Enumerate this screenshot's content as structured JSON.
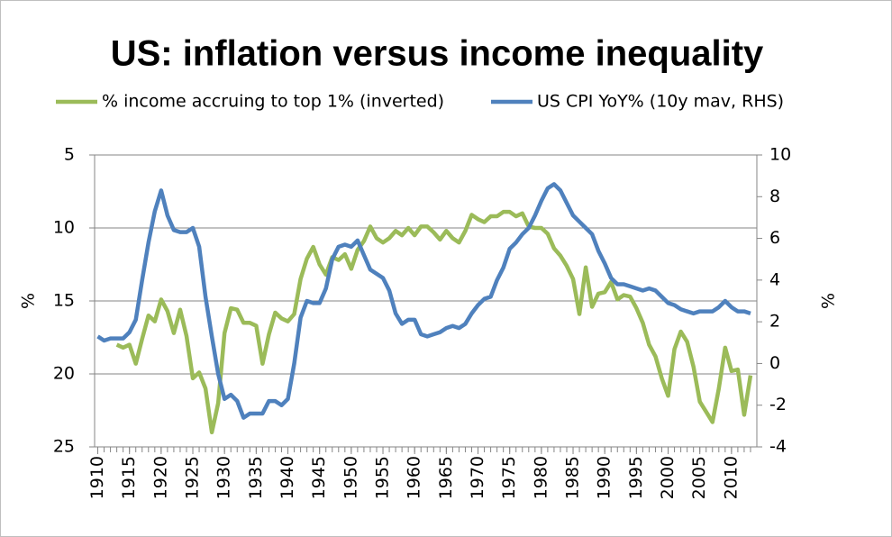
{
  "chart_data": {
    "type": "line",
    "title": "US: inflation versus income inequality",
    "y_label": "%",
    "y2_label": "%",
    "x": [
      1910,
      1911,
      1912,
      1913,
      1914,
      1915,
      1916,
      1917,
      1918,
      1919,
      1920,
      1921,
      1922,
      1923,
      1924,
      1925,
      1926,
      1927,
      1928,
      1929,
      1930,
      1931,
      1932,
      1933,
      1934,
      1935,
      1936,
      1937,
      1938,
      1939,
      1940,
      1941,
      1942,
      1943,
      1944,
      1945,
      1946,
      1947,
      1948,
      1949,
      1950,
      1951,
      1952,
      1953,
      1954,
      1955,
      1956,
      1957,
      1958,
      1959,
      1960,
      1961,
      1962,
      1963,
      1964,
      1965,
      1966,
      1967,
      1968,
      1969,
      1970,
      1971,
      1972,
      1973,
      1974,
      1975,
      1976,
      1977,
      1978,
      1979,
      1980,
      1981,
      1982,
      1983,
      1984,
      1985,
      1986,
      1987,
      1988,
      1989,
      1990,
      1991,
      1992,
      1993,
      1994,
      1995,
      1996,
      1997,
      1998,
      1999,
      2000,
      2001,
      2002,
      2003,
      2004,
      2005,
      2006,
      2007,
      2008,
      2009,
      2010,
      2011,
      2012,
      2013
    ],
    "series": [
      {
        "name": "% income accruing to top 1% (inverted)",
        "color": "#9bbb59",
        "axis": "y",
        "values": [
          null,
          null,
          null,
          18.0,
          18.2,
          18.0,
          19.3,
          17.6,
          16.0,
          16.4,
          14.9,
          15.7,
          17.2,
          15.6,
          17.4,
          20.3,
          19.9,
          21.0,
          24.0,
          22.0,
          17.2,
          15.5,
          15.6,
          16.5,
          16.5,
          16.7,
          19.3,
          17.3,
          15.8,
          16.2,
          16.4,
          15.9,
          13.5,
          12.1,
          11.3,
          12.5,
          13.2,
          12.0,
          12.2,
          11.8,
          12.8,
          11.5,
          10.9,
          9.9,
          10.7,
          11.0,
          10.7,
          10.2,
          10.5,
          10.0,
          10.5,
          9.9,
          9.9,
          10.3,
          10.8,
          10.2,
          10.7,
          11.0,
          10.2,
          9.1,
          9.4,
          9.6,
          9.2,
          9.2,
          8.9,
          8.9,
          9.2,
          9.0,
          9.9,
          10.0,
          10.0,
          10.4,
          11.4,
          11.9,
          12.6,
          13.5,
          15.9,
          12.7,
          15.4,
          14.5,
          14.4,
          13.7,
          14.9,
          14.6,
          14.7,
          15.5,
          16.5,
          18.0,
          18.8,
          20.3,
          21.5,
          18.3,
          17.1,
          17.8,
          19.5,
          21.9,
          22.6,
          23.3,
          21.0,
          18.2,
          19.8,
          19.7,
          22.8,
          20.1
        ]
      },
      {
        "name": "US CPI YoY% (10y mav, RHS)",
        "color": "#4f81bd",
        "axis": "y2",
        "values": [
          1.3,
          1.1,
          1.2,
          1.2,
          1.2,
          1.5,
          2.1,
          4.0,
          5.8,
          7.3,
          8.3,
          7.1,
          6.4,
          6.3,
          6.3,
          6.5,
          5.6,
          3.2,
          1.3,
          -0.5,
          -1.7,
          -1.5,
          -1.8,
          -2.6,
          -2.4,
          -2.4,
          -2.4,
          -1.8,
          -1.8,
          -2.0,
          -1.7,
          0,
          2.2,
          3.0,
          2.9,
          2.9,
          3.6,
          5.0,
          5.6,
          5.7,
          5.6,
          5.9,
          5.2,
          4.5,
          4.3,
          4.1,
          3.5,
          2.4,
          1.9,
          2.1,
          2.1,
          1.4,
          1.3,
          1.4,
          1.5,
          1.7,
          1.8,
          1.7,
          1.9,
          2.4,
          2.8,
          3.1,
          3.2,
          4.0,
          4.6,
          5.5,
          5.8,
          6.2,
          6.5,
          7.1,
          7.8,
          8.4,
          8.6,
          8.3,
          7.7,
          7.1,
          6.8,
          6.5,
          6.2,
          5.4,
          4.8,
          4.1,
          3.8,
          3.8,
          3.7,
          3.6,
          3.5,
          3.6,
          3.5,
          3.2,
          2.9,
          2.8,
          2.6,
          2.5,
          2.4,
          2.5,
          2.5,
          2.5,
          2.7,
          3.0,
          2.7,
          2.5,
          2.5,
          2.4
        ]
      }
    ],
    "xlim": [
      1909.5,
      2014
    ],
    "xticks": [
      1910,
      1915,
      1920,
      1925,
      1930,
      1935,
      1940,
      1945,
      1950,
      1955,
      1960,
      1965,
      1970,
      1975,
      1980,
      1985,
      1990,
      1995,
      2000,
      2005,
      2010
    ],
    "ylim": [
      5,
      25
    ],
    "y_inverted": true,
    "yticks": [
      5,
      10,
      15,
      20,
      25
    ],
    "y2lim": [
      -4,
      10
    ],
    "y2ticks": [
      -4,
      -2,
      0,
      2,
      4,
      6,
      8,
      10
    ],
    "grid": true,
    "legend": "top"
  }
}
